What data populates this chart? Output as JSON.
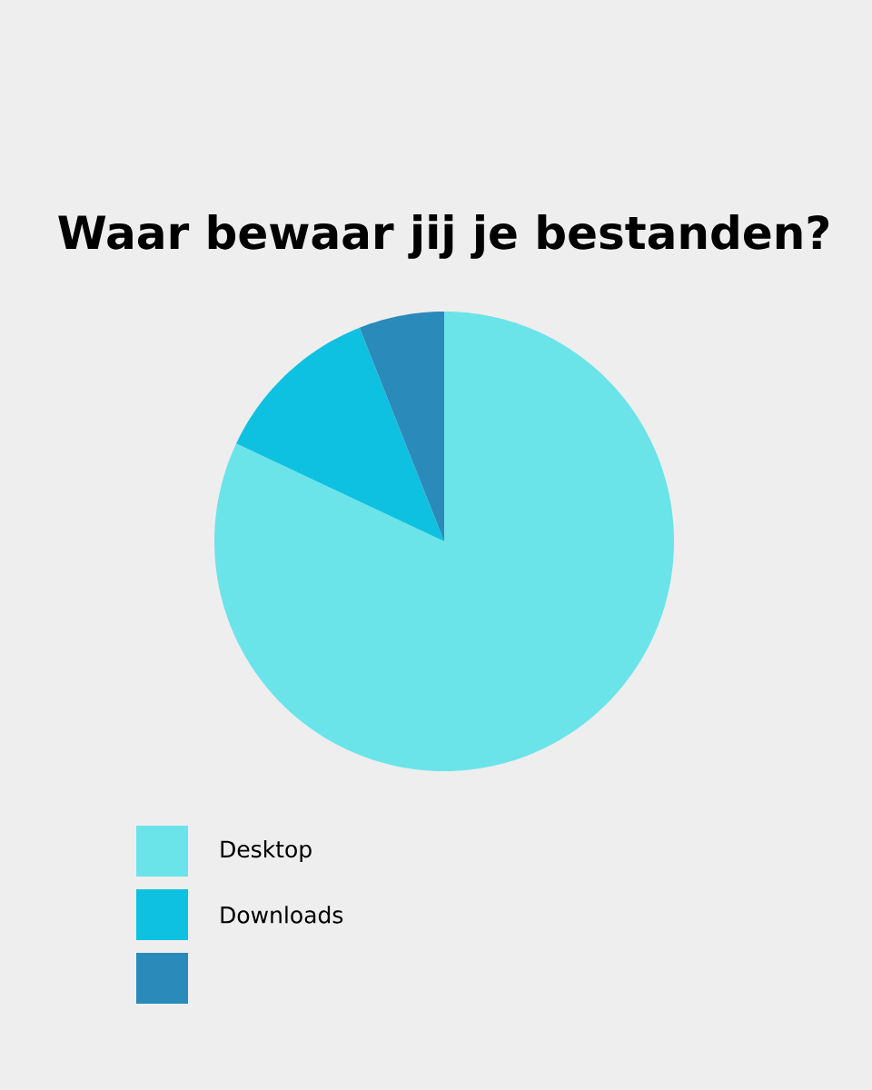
{
  "chart_data": {
    "type": "pie",
    "title": "Waar bewaar jij je bestanden?",
    "categories": [
      "Desktop",
      "Downloads",
      null
    ],
    "values": [
      82,
      12,
      6
    ],
    "colors": [
      "#6ae4e9",
      "#0ec1e0",
      "#2a8aba"
    ],
    "legend": "bottom left"
  }
}
